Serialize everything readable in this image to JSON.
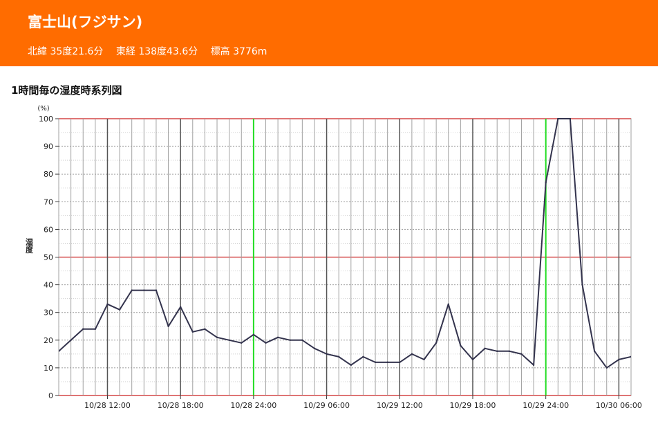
{
  "header": {
    "station_name": "富士山(フジサン)",
    "latitude": "北緯 35度21.6分",
    "longitude": "東経 138度43.6分",
    "elevation": "標高 3776m",
    "background": "#ff6c00"
  },
  "chart_data": {
    "type": "line",
    "title": "1時間毎の湿度時系列図",
    "ylabel": "湿度",
    "yunit": "(%)",
    "ylim": [
      0,
      100
    ],
    "yticks": [
      0,
      10,
      20,
      30,
      40,
      50,
      60,
      70,
      80,
      90,
      100
    ],
    "grid": true,
    "xtick_labels": [
      "10/28 12:00",
      "10/28 18:00",
      "10/28 24:00",
      "10/29 06:00",
      "10/29 12:00",
      "10/29 18:00",
      "10/29 24:00",
      "10/30 06:00"
    ],
    "x": [
      "10/28 08:00",
      "10/28 09:00",
      "10/28 10:00",
      "10/28 11:00",
      "10/28 12:00",
      "10/28 13:00",
      "10/28 14:00",
      "10/28 15:00",
      "10/28 16:00",
      "10/28 17:00",
      "10/28 18:00",
      "10/28 19:00",
      "10/28 20:00",
      "10/28 21:00",
      "10/28 22:00",
      "10/28 23:00",
      "10/28 24:00",
      "10/29 01:00",
      "10/29 02:00",
      "10/29 03:00",
      "10/29 04:00",
      "10/29 05:00",
      "10/29 06:00",
      "10/29 07:00",
      "10/29 08:00",
      "10/29 09:00",
      "10/29 10:00",
      "10/29 11:00",
      "10/29 12:00",
      "10/29 13:00",
      "10/29 14:00",
      "10/29 15:00",
      "10/29 16:00",
      "10/29 17:00",
      "10/29 18:00",
      "10/29 19:00",
      "10/29 20:00",
      "10/29 21:00",
      "10/29 22:00",
      "10/29 23:00",
      "10/29 24:00",
      "10/30 01:00",
      "10/30 02:00",
      "10/30 03:00",
      "10/30 04:00",
      "10/30 05:00",
      "10/30 06:00",
      "10/30 07:00"
    ],
    "series": [
      {
        "values": [
          16,
          20,
          24,
          24,
          33,
          31,
          38,
          38,
          38,
          25,
          32,
          23,
          24,
          21,
          20,
          19,
          22,
          19,
          21,
          20,
          20,
          17,
          15,
          14,
          11,
          14,
          12,
          12,
          12,
          15,
          13,
          19,
          33,
          18,
          13,
          17,
          16,
          16,
          15,
          11,
          77,
          100,
          100,
          40,
          16,
          10,
          13,
          14
        ]
      }
    ],
    "colors": {
      "line": "#33334d",
      "major_day": "#22dd22",
      "reference": "#cc2222",
      "hour6": "#555555",
      "hour": "#a0a0a0",
      "minor_y": "#cfcfcf"
    }
  }
}
